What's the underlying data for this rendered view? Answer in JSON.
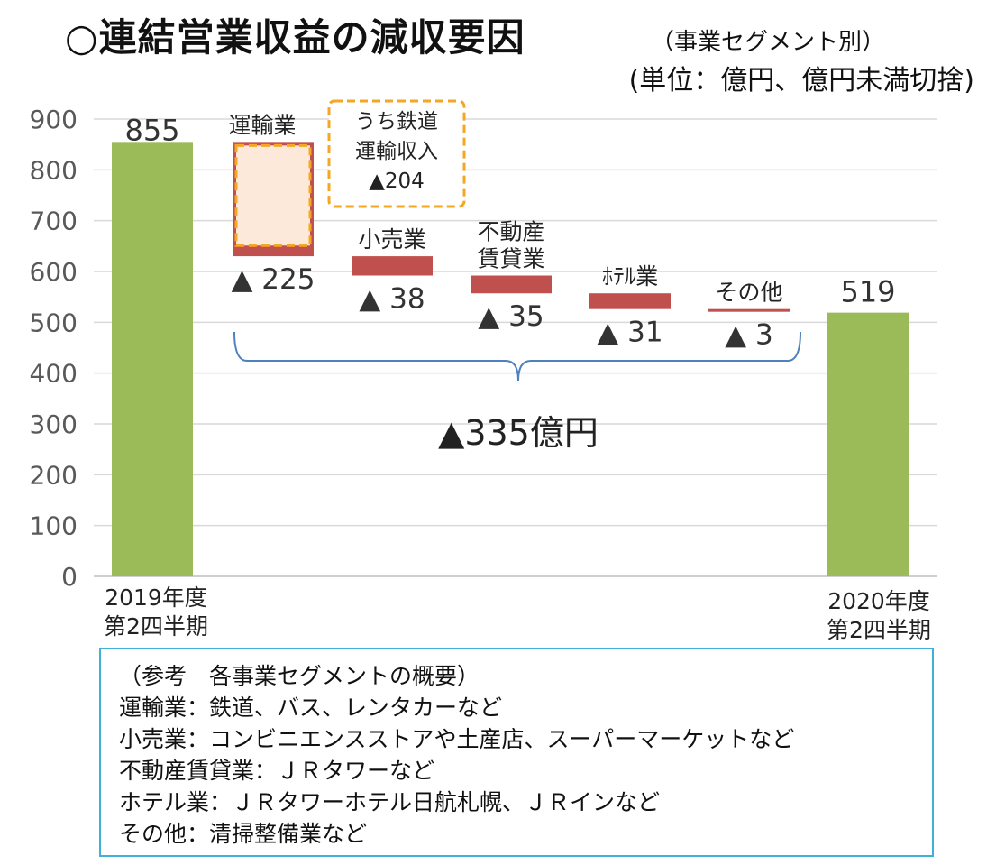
{
  "header": {
    "title": "○連結営業収益の減収要因",
    "subtitle": "（事業セグメント別）",
    "unit": "(単位：億円、億円未満切捨)"
  },
  "colors": {
    "start_end_bar": "#9bbb59",
    "decrease_bar": "#c0504d",
    "callout_border": "#f5a623",
    "callout_fill": "#fde9d9",
    "brace": "#4f81bd",
    "note_border": "#41b0d8"
  },
  "chart_data": {
    "type": "waterfall",
    "ylim": [
      0,
      900
    ],
    "yticks": [
      "0",
      "100",
      "200",
      "300",
      "400",
      "500",
      "600",
      "700",
      "800",
      "900"
    ],
    "start": {
      "category": "2019年度\n第2四半期",
      "value": 855,
      "label": "855"
    },
    "end": {
      "category": "2020年度\n第2四半期",
      "value": 519,
      "label": "519"
    },
    "decreases": [
      {
        "name": "運輸業",
        "value": 225,
        "label": "▲ 225"
      },
      {
        "name": "小売業",
        "value": 38,
        "label": "▲ 38"
      },
      {
        "name": "不動産\n賃貸業",
        "value": 35,
        "label": "▲ 35"
      },
      {
        "name": "ﾎﾃﾙ業",
        "value": 31,
        "label": "▲ 31"
      },
      {
        "name": "その他",
        "value": 3,
        "label": "▲ 3"
      }
    ],
    "callout": {
      "lines": [
        "うち鉄道",
        "運輸収入",
        "▲204"
      ],
      "value": 204
    },
    "total_label": "▲335億円"
  },
  "notes": {
    "heading": "（参考　各事業セグメントの概要）",
    "lines": [
      "運輸業：鉄道、バス、レンタカーなど",
      "小売業：コンビニエンスストアや土産店、スーパーマーケットなど",
      "不動産賃貸業：ＪＲタワーなど",
      "ホテル業：ＪＲタワーホテル日航札幌、ＪＲインなど",
      "その他：清掃整備業など"
    ]
  }
}
